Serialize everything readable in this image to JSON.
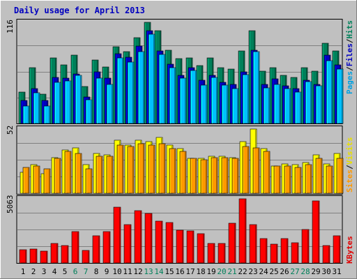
{
  "chart_data": {
    "type": "bar",
    "title": "Daily usage for April 2013",
    "categories": [
      "1",
      "2",
      "3",
      "4",
      "5",
      "6",
      "7",
      "8",
      "9",
      "10",
      "11",
      "12",
      "13",
      "14",
      "15",
      "16",
      "17",
      "18",
      "19",
      "20",
      "21",
      "22",
      "23",
      "24",
      "25",
      "26",
      "27",
      "28",
      "29",
      "30",
      "31"
    ],
    "weekend_days": [
      "6",
      "7",
      "13",
      "14",
      "20",
      "21",
      "27",
      "28"
    ],
    "panels": [
      {
        "name": "top",
        "max_label": "116",
        "legend": [
          {
            "text": "Pages",
            "color": "#00a0e0"
          },
          {
            "text": "Files",
            "color": "#0000c0"
          },
          {
            "text": "Hits",
            "color": "#00805a"
          }
        ],
        "series": [
          {
            "name": "Hits",
            "color": "#00805a",
            "values": [
              36,
              64,
              34,
              75,
              67,
              78,
              42,
              73,
              65,
              88,
              82,
              98,
              116,
              106,
              84,
              74,
              75,
              66,
              75,
              64,
              62,
              83,
              106,
              60,
              64,
              55,
              53,
              64,
              60,
              92,
              83
            ]
          },
          {
            "name": "Files",
            "color": "#0000c0",
            "values": [
              26,
              40,
              26,
              53,
              52,
              57,
              30,
              59,
              52,
              80,
              76,
              89,
              106,
              83,
              68,
              55,
              64,
              50,
              55,
              47,
              45,
              59,
              84,
              45,
              51,
              43,
              40,
              50,
              45,
              78,
              67
            ]
          },
          {
            "name": "Pages",
            "color": "#00c0ff",
            "values": [
              20,
              35,
              20,
              47,
              49,
              55,
              27,
              52,
              45,
              75,
              70,
              82,
              102,
              79,
              64,
              52,
              61,
              44,
              53,
              44,
              40,
              56,
              82,
              41,
              45,
              40,
              36,
              48,
              43,
              72,
              62
            ]
          }
        ]
      },
      {
        "name": "middle",
        "max_label": "52",
        "legend": [
          {
            "text": "Sites",
            "color": "#ff9900"
          },
          {
            "text": "Visits",
            "color": "#e8e000"
          }
        ],
        "series": [
          {
            "name": "Visits",
            "color": "#ffff00",
            "values": [
              17,
              23,
              16,
              29,
              35,
              37,
              23,
              32,
              31,
              43,
              39,
              43,
              42,
              45,
              39,
              36,
              28,
              28,
              30,
              30,
              29,
              42,
              52,
              36,
              22,
              24,
              23,
              25,
              31,
              24,
              32
            ]
          },
          {
            "name": "Sites",
            "color": "#ff9900",
            "values": [
              21,
              22,
              20,
              28,
              34,
              32,
              20,
              30,
              30,
              39,
              38,
              40,
              39,
              40,
              36,
              34,
              28,
              27,
              29,
              29,
              28,
              38,
              37,
              34,
              22,
              22,
              21,
              23,
              28,
              22,
              28
            ]
          }
        ]
      },
      {
        "name": "bottom",
        "max_label": "5063",
        "legend": [
          {
            "text": "KBytes",
            "color": "#e00000"
          }
        ],
        "series": [
          {
            "name": "KBytes",
            "color": "#ff0000",
            "values": [
              1050,
              1100,
              936,
              1550,
              1400,
              2500,
              1000,
              2150,
              2470,
              4400,
              3000,
              4100,
              3900,
              3320,
              3180,
              2600,
              2550,
              2290,
              1550,
              1550,
              3150,
              5063,
              3050,
              1950,
              1470,
              1950,
              1580,
              2620,
              4900,
              1400,
              2150
            ]
          }
        ]
      }
    ]
  }
}
